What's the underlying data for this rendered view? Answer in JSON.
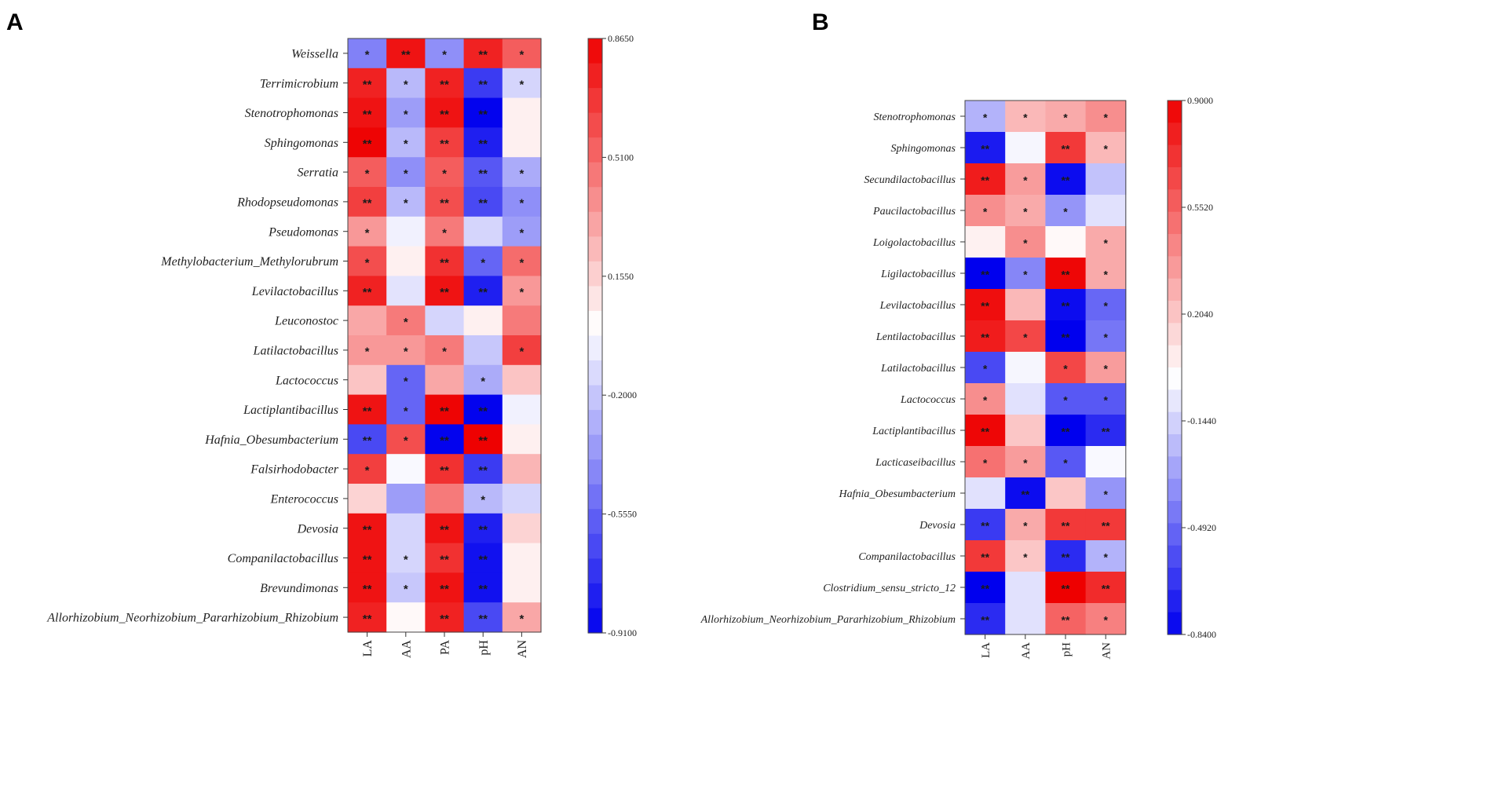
{
  "chart_data": [
    {
      "type": "heatmap",
      "panel_label": "A",
      "columns": [
        "LA",
        "AA",
        "PA",
        "pH",
        "AN"
      ],
      "rows": [
        "Weissella",
        "Terrimicrobium",
        "Stenotrophomonas",
        "Sphingomonas",
        "Serratia",
        "Rhodopseudomonas",
        "Pseudomonas",
        "Methylobacterium_Methylorubrum",
        "Levilactobacillus",
        "Leuconostoc",
        "Latilactobacillus",
        "Lactococcus",
        "Lactiplantibacillus",
        "Hafnia_Obesumbacterium",
        "Falsirhodobacter",
        "Enterococcus",
        "Devosia",
        "Companilactobacillus",
        "Brevundimonas",
        "Allorhizobium_Neorhizobium_Pararhizobium_Rhizobium"
      ],
      "values": [
        [
          -0.45,
          0.8,
          -0.4,
          0.75,
          0.55
        ],
        [
          0.75,
          -0.25,
          0.75,
          -0.7,
          -0.15
        ],
        [
          0.8,
          -0.35,
          0.8,
          -0.9,
          0.05
        ],
        [
          0.85,
          -0.25,
          0.65,
          -0.8,
          0.05
        ],
        [
          0.55,
          -0.4,
          0.55,
          -0.6,
          -0.3
        ],
        [
          0.65,
          -0.25,
          0.6,
          -0.65,
          -0.4
        ],
        [
          0.35,
          -0.05,
          0.45,
          -0.15,
          -0.35
        ],
        [
          0.6,
          0.05,
          0.7,
          -0.55,
          0.5
        ],
        [
          0.75,
          -0.1,
          0.8,
          -0.8,
          0.35
        ],
        [
          0.3,
          0.45,
          -0.15,
          0.05,
          0.45
        ],
        [
          0.35,
          0.35,
          0.45,
          -0.2,
          0.65
        ],
        [
          0.2,
          -0.55,
          0.3,
          -0.3,
          0.2
        ],
        [
          0.8,
          -0.55,
          0.85,
          -0.9,
          -0.05
        ],
        [
          -0.65,
          0.6,
          -0.9,
          0.86,
          0.05
        ],
        [
          0.65,
          -0.02,
          0.7,
          -0.7,
          0.25
        ],
        [
          0.15,
          -0.35,
          0.45,
          -0.25,
          -0.15
        ],
        [
          0.8,
          -0.15,
          0.8,
          -0.8,
          0.15
        ],
        [
          0.8,
          -0.15,
          0.7,
          -0.85,
          0.05
        ],
        [
          0.8,
          -0.2,
          0.8,
          -0.85,
          0.05
        ],
        [
          0.75,
          0.02,
          0.75,
          -0.65,
          0.3
        ]
      ],
      "significance": [
        [
          "*",
          "**",
          "*",
          "**",
          "*"
        ],
        [
          "**",
          "*",
          "**",
          "**",
          "*"
        ],
        [
          "**",
          "*",
          "**",
          "**",
          ""
        ],
        [
          "**",
          "*",
          "**",
          "**",
          ""
        ],
        [
          "*",
          "*",
          "*",
          "**",
          "*"
        ],
        [
          "**",
          "*",
          "**",
          "**",
          "*"
        ],
        [
          "*",
          "",
          "*",
          "",
          "*"
        ],
        [
          "*",
          "",
          "**",
          "*",
          "*"
        ],
        [
          "**",
          "",
          "**",
          "**",
          "*"
        ],
        [
          "",
          "*",
          "",
          "",
          ""
        ],
        [
          "*",
          "*",
          "*",
          "",
          "*"
        ],
        [
          "",
          "*",
          "",
          "*",
          ""
        ],
        [
          "**",
          "*",
          "**",
          "**",
          ""
        ],
        [
          "**",
          "*",
          "**",
          "**",
          ""
        ],
        [
          "*",
          "",
          "**",
          "**",
          ""
        ],
        [
          "",
          "",
          "",
          "*",
          ""
        ],
        [
          "**",
          "",
          "**",
          "**",
          ""
        ],
        [
          "**",
          "*",
          "**",
          "**",
          ""
        ],
        [
          "**",
          "*",
          "**",
          "**",
          ""
        ],
        [
          "**",
          "",
          "**",
          "**",
          "*"
        ]
      ],
      "color_scale": {
        "min": -0.91,
        "max": 0.865,
        "ticks": [
          0.865,
          0.51,
          0.155,
          -0.2,
          -0.555,
          -0.91
        ],
        "tick_labels": [
          "0.8650",
          "0.5100",
          "0.1550",
          "-0.2000",
          "-0.5550",
          "-0.9100"
        ],
        "low_color": "#0000ee",
        "mid_color": "#ffffff",
        "high_color": "#ee0000"
      }
    },
    {
      "type": "heatmap",
      "panel_label": "B",
      "columns": [
        "LA",
        "AA",
        "pH",
        "AN"
      ],
      "rows": [
        "Stenotrophomonas",
        "Sphingomonas",
        "Secundilactobacillus",
        "Paucilactobacillus",
        "Loigolactobacillus",
        "Ligilactobacillus",
        "Levilactobacillus",
        "Lentilactobacillus",
        "Latilactobacillus",
        "Lactococcus",
        "Lactiplantibacillus",
        "Lacticaseibacillus",
        "Hafnia_Obesumbacterium",
        "Devosia",
        "Companilactobacillus",
        "Clostridium_sensu_stricto_12",
        "Allorhizobium_Neorhizobium_Pararhizobium_Rhizobium"
      ],
      "values": [
        [
          -0.25,
          0.25,
          0.3,
          0.4
        ],
        [
          -0.75,
          -0.03,
          0.7,
          0.25
        ],
        [
          0.8,
          0.35,
          -0.8,
          -0.2
        ],
        [
          0.4,
          0.3,
          -0.35,
          -0.1
        ],
        [
          0.05,
          0.4,
          0.02,
          0.3
        ],
        [
          -0.84,
          -0.4,
          0.88,
          0.3
        ],
        [
          0.85,
          0.25,
          -0.8,
          -0.5
        ],
        [
          0.8,
          0.65,
          -0.84,
          -0.45
        ],
        [
          -0.6,
          -0.03,
          0.65,
          0.35
        ],
        [
          0.4,
          -0.1,
          -0.55,
          -0.55
        ],
        [
          0.88,
          0.2,
          -0.84,
          -0.7
        ],
        [
          0.5,
          0.35,
          -0.55,
          -0.02
        ],
        [
          -0.1,
          -0.8,
          0.2,
          -0.35
        ],
        [
          -0.65,
          0.3,
          0.7,
          0.7
        ],
        [
          0.7,
          0.2,
          -0.7,
          -0.25
        ],
        [
          -0.84,
          -0.1,
          0.9,
          0.75
        ],
        [
          -0.7,
          -0.1,
          0.55,
          0.45
        ]
      ],
      "significance": [
        [
          "*",
          "*",
          "*",
          "*"
        ],
        [
          "**",
          "",
          "**",
          "*"
        ],
        [
          "**",
          "*",
          "**",
          ""
        ],
        [
          "*",
          "*",
          "*",
          ""
        ],
        [
          "",
          "*",
          "",
          "*"
        ],
        [
          "**",
          "*",
          "**",
          "*"
        ],
        [
          "**",
          "",
          "**",
          "*"
        ],
        [
          "**",
          "*",
          "**",
          "*"
        ],
        [
          "*",
          "",
          "*",
          "*"
        ],
        [
          "*",
          "",
          "*",
          "*"
        ],
        [
          "**",
          "",
          "**",
          "**"
        ],
        [
          "*",
          "*",
          "*",
          ""
        ],
        [
          "",
          "**",
          "",
          "*"
        ],
        [
          "**",
          "*",
          "**",
          "**"
        ],
        [
          "**",
          "*",
          "**",
          "*"
        ],
        [
          "**",
          "",
          "**",
          "**"
        ],
        [
          "**",
          "",
          "**",
          "*"
        ]
      ],
      "color_scale": {
        "min": -0.84,
        "max": 0.9,
        "ticks": [
          0.9,
          0.552,
          0.204,
          -0.144,
          -0.492,
          -0.84
        ],
        "tick_labels": [
          "0.9000",
          "0.5520",
          "0.2040",
          "-0.1440",
          "-0.4920",
          "-0.8400"
        ],
        "low_color": "#0000ee",
        "mid_color": "#ffffff",
        "high_color": "#ee0000"
      }
    }
  ]
}
